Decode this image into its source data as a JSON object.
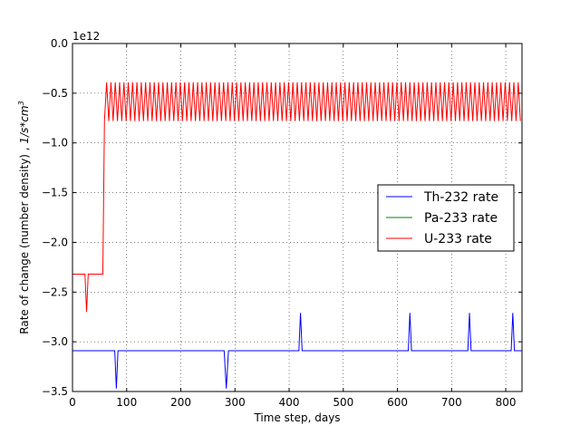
{
  "chart_data": {
    "type": "line",
    "title": "",
    "xlabel": "Time step, days",
    "ylabel": "Rate of change (number density) , 1/s*cm³",
    "ylabel_parts": {
      "prefix": "Rate of change (number density) , ",
      "unit_num": "1/s*cm",
      "unit_exp": "3"
    },
    "y_offset_label": "1e12",
    "xlim": [
      0,
      830
    ],
    "ylim": [
      -3.5,
      0.0
    ],
    "xticks": [
      0,
      100,
      200,
      300,
      400,
      500,
      600,
      700,
      800
    ],
    "xtick_labels": [
      "0",
      "100",
      "200",
      "300",
      "400",
      "500",
      "600",
      "700",
      "800"
    ],
    "yticks": [
      0.0,
      -0.5,
      -1.0,
      -1.5,
      -2.0,
      -2.5,
      -3.0,
      -3.5
    ],
    "ytick_labels": [
      "0.0",
      "−0.5",
      "−1.0",
      "−1.5",
      "−2.0",
      "−2.5",
      "−3.0",
      "−3.5"
    ],
    "grid": true,
    "legend_position": "center-right",
    "series": [
      {
        "name": "Th-232 rate",
        "color": "#0000ff",
        "x": [
          0,
          78,
          81,
          84,
          280,
          284,
          288,
          418,
          421,
          424,
          620,
          623,
          626,
          730,
          733,
          736,
          810,
          813,
          816,
          830
        ],
        "y": [
          -3.09,
          -3.09,
          -3.47,
          -3.09,
          -3.09,
          -3.47,
          -3.09,
          -3.09,
          -2.71,
          -3.09,
          -3.09,
          -2.71,
          -3.09,
          -3.09,
          -2.71,
          -3.09,
          -3.09,
          -2.71,
          -3.09,
          -3.09
        ]
      },
      {
        "name": "Pa-233 rate",
        "color": "#008000",
        "x": [],
        "y": []
      },
      {
        "name": "U-233 rate",
        "color": "#ff0000",
        "x": [
          0,
          23,
          26,
          29,
          56,
          59,
          59,
          830
        ],
        "y": [
          -2.32,
          -2.32,
          -2.7,
          -2.32,
          -2.32,
          -0.78,
          -0.78,
          -0.78
        ],
        "oscillation": {
          "x_start": 59,
          "x_end": 830,
          "low": -0.78,
          "high": -0.39,
          "period_days": 8
        }
      }
    ]
  }
}
